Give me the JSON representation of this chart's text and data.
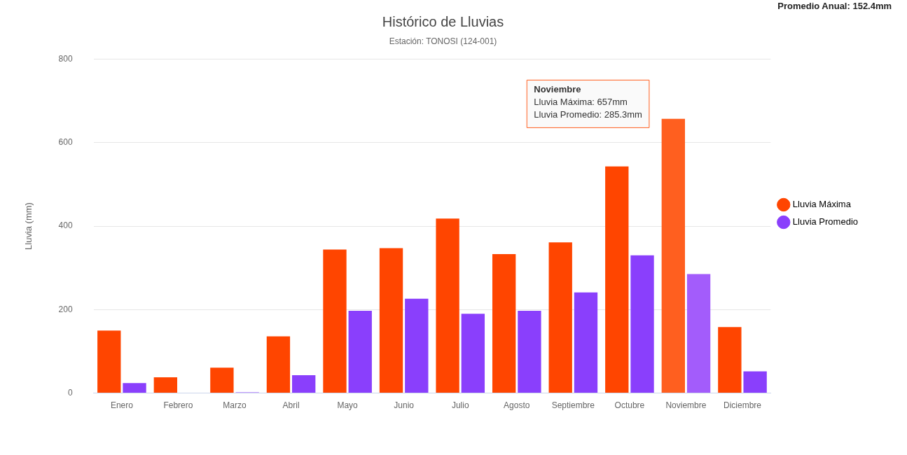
{
  "chart_data": {
    "type": "bar",
    "title": "Histórico de Lluvias",
    "subtitle": "Estación: TONOSI (124-001)",
    "ylabel": "Lluvia (mm)",
    "legend_title": "Promedio Anual: 152.4mm",
    "categories": [
      "Enero",
      "Febrero",
      "Marzo",
      "Abril",
      "Mayo",
      "Junio",
      "Julio",
      "Agosto",
      "Septiembre",
      "Octubre",
      "Noviembre",
      "Diciembre"
    ],
    "series": [
      {
        "name": "Lluvia Máxima",
        "color": "#ff4500",
        "colors": [
          "#ff4500",
          "#ff4500",
          "#ff4500",
          "#ff4500",
          "#ff4500",
          "#ff4500",
          "#ff4500",
          "#ff4500",
          "#ff4500",
          "#ff4500",
          "#ff5f1f",
          "#ff4500"
        ],
        "values": [
          150,
          38,
          61,
          136,
          344,
          347,
          418,
          333,
          361,
          543,
          657,
          158
        ]
      },
      {
        "name": "Lluvia Promedio",
        "color": "#8a3ffc",
        "colors": [
          "#8a3ffc",
          "#8a3ffc",
          "#8a3ffc",
          "#8a3ffc",
          "#8a3ffc",
          "#8a3ffc",
          "#8a3ffc",
          "#8a3ffc",
          "#8a3ffc",
          "#8a3ffc",
          "#a35cfb",
          "#8a3ffc"
        ],
        "values": [
          24,
          0,
          2,
          43,
          197,
          226,
          190,
          197,
          241,
          330,
          285.3,
          52
        ]
      }
    ],
    "annotations": [
      "Noviembre\nLluvia Máxima: 657mm\nLluvia Promedio: 285.3mm"
    ],
    "ylim": [
      0,
      800
    ],
    "yticks": [
      0,
      200,
      400,
      600,
      800
    ],
    "grid": "y",
    "legend": "right"
  }
}
